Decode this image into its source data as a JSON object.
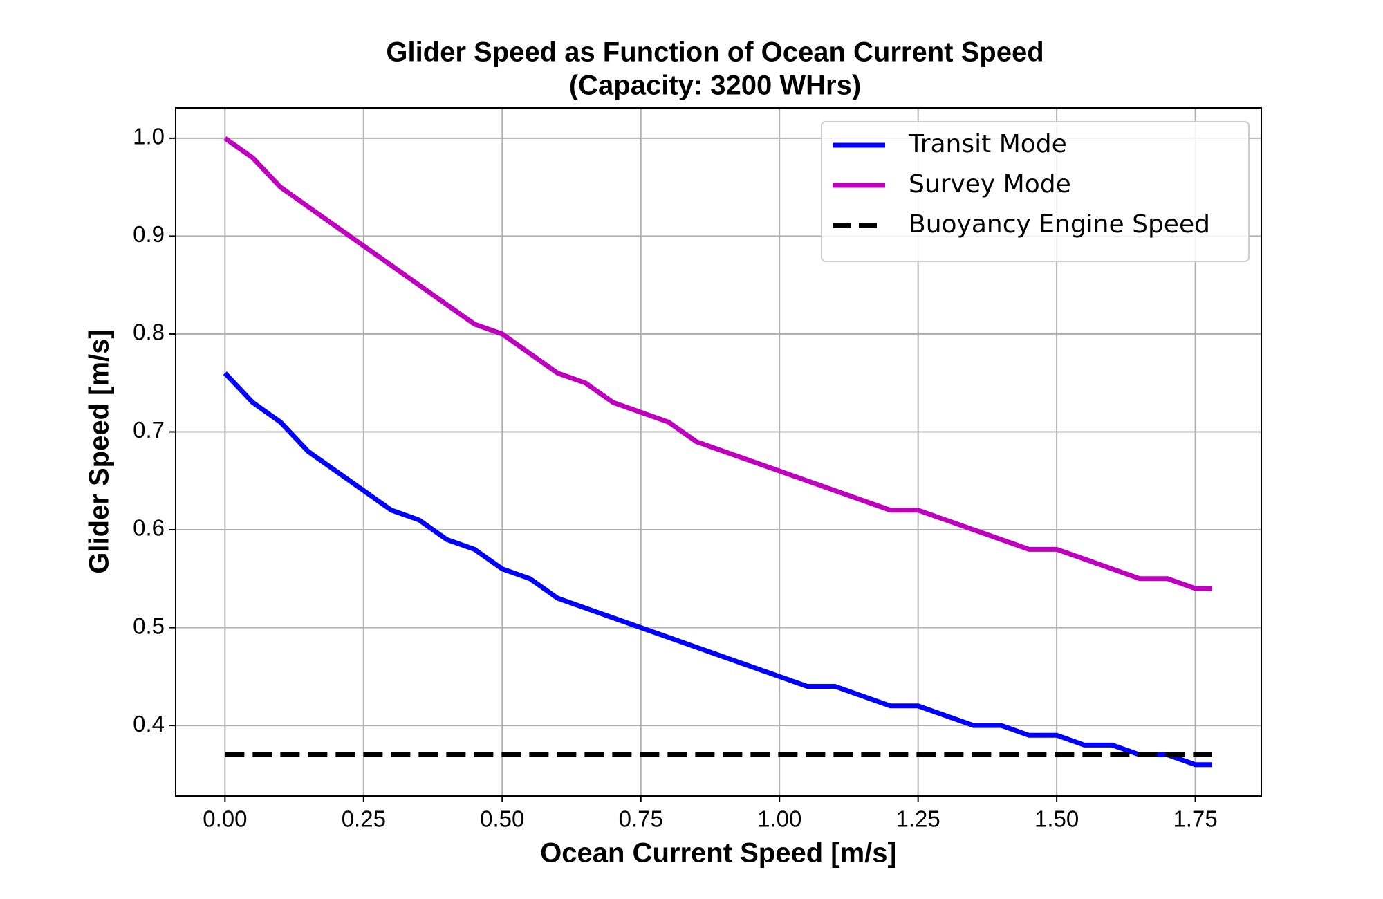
{
  "chart_data": {
    "type": "line",
    "title": "Glider Speed as Function of Ocean Current Speed",
    "subtitle": "(Capacity: 3200 WHrs)",
    "x_label": "Ocean Current Speed [m/s]",
    "y_label": "Glider Speed [m/s]",
    "x": [
      0,
      0.05,
      0.1,
      0.15,
      0.2,
      0.25,
      0.3,
      0.35,
      0.4,
      0.45,
      0.5,
      0.55,
      0.6,
      0.65,
      0.7,
      0.75,
      0.8,
      0.85,
      0.9,
      0.95,
      1.0,
      1.05,
      1.1,
      1.15,
      1.2,
      1.25,
      1.3,
      1.35,
      1.4,
      1.45,
      1.5,
      1.55,
      1.6,
      1.65,
      1.7,
      1.75,
      1.78
    ],
    "series": [
      {
        "name": "Transit Mode",
        "color": "#0000ff",
        "linestyle": "solid",
        "values": [
          0.76,
          0.73,
          0.71,
          0.68,
          0.66,
          0.64,
          0.62,
          0.61,
          0.59,
          0.58,
          0.56,
          0.55,
          0.53,
          0.52,
          0.51,
          0.5,
          0.49,
          0.48,
          0.47,
          0.46,
          0.45,
          0.44,
          0.44,
          0.43,
          0.42,
          0.42,
          0.41,
          0.4,
          0.4,
          0.39,
          0.39,
          0.38,
          0.38,
          0.37,
          0.37,
          0.36,
          0.36
        ]
      },
      {
        "name": "Survey Mode",
        "color": "#bf00bf",
        "linestyle": "solid",
        "values": [
          1.0,
          0.98,
          0.95,
          0.93,
          0.91,
          0.89,
          0.87,
          0.85,
          0.83,
          0.81,
          0.8,
          0.78,
          0.76,
          0.75,
          0.73,
          0.72,
          0.71,
          0.69,
          0.68,
          0.67,
          0.66,
          0.65,
          0.64,
          0.63,
          0.62,
          0.62,
          0.61,
          0.6,
          0.59,
          0.58,
          0.58,
          0.57,
          0.56,
          0.55,
          0.55,
          0.54,
          0.54
        ]
      },
      {
        "name": "Buoyancy Engine Speed",
        "color": "#000000",
        "linestyle": "dashed",
        "values": [
          0.37,
          0.37,
          0.37,
          0.37,
          0.37,
          0.37,
          0.37,
          0.37,
          0.37,
          0.37,
          0.37,
          0.37,
          0.37,
          0.37,
          0.37,
          0.37,
          0.37,
          0.37,
          0.37,
          0.37,
          0.37,
          0.37,
          0.37,
          0.37,
          0.37,
          0.37,
          0.37,
          0.37,
          0.37,
          0.37,
          0.37,
          0.37,
          0.37,
          0.37,
          0.37,
          0.37,
          0.37
        ]
      }
    ],
    "xlim": [
      -0.089,
      1.869
    ],
    "ylim": [
      0.328,
      1.031
    ],
    "xticks": [
      {
        "value": 0,
        "label": "0.00"
      },
      0.25,
      {
        "value": 0.5,
        "label": "0.50"
      },
      0.75,
      {
        "value": 1.0,
        "label": "1.00"
      },
      1.25,
      {
        "value": 1.5,
        "label": "1.50"
      },
      1.75
    ],
    "yticks": [
      0.4,
      0.5,
      0.6,
      0.7,
      0.8,
      0.9,
      {
        "value": 1.0,
        "label": "1.0"
      }
    ],
    "grid": true,
    "legend": "upper right"
  }
}
